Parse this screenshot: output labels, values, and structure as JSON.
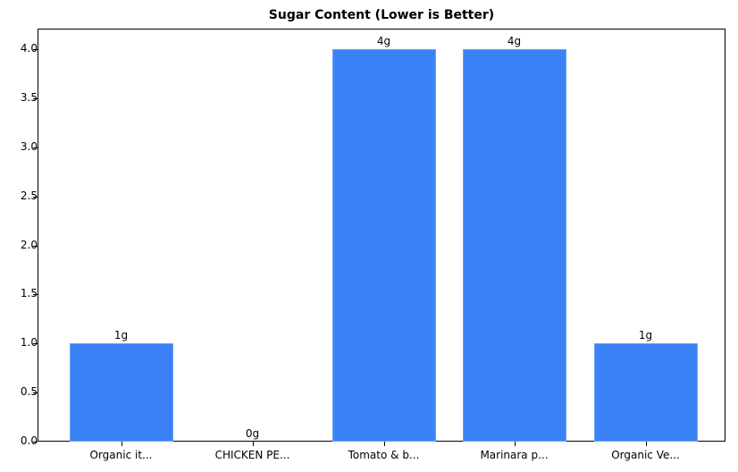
{
  "chart_data": {
    "type": "bar",
    "title": "Sugar Content (Lower is Better)",
    "xlabel": "",
    "ylabel": "",
    "categories": [
      "Organic it...",
      "CHICKEN PE...",
      "Tomato & b...",
      "Marinara p...",
      "Organic Ve..."
    ],
    "values": [
      1,
      0,
      4,
      4,
      1
    ],
    "value_labels": [
      "1g",
      "0g",
      "4g",
      "4g",
      "1g"
    ],
    "ylim": [
      0,
      4.2
    ],
    "yticks": [
      "0.0",
      "0.5",
      "1.0",
      "1.5",
      "2.0",
      "2.5",
      "3.0",
      "3.5",
      "4.0"
    ],
    "grid": false,
    "legend": null,
    "bar_color": "#3b82f6"
  }
}
